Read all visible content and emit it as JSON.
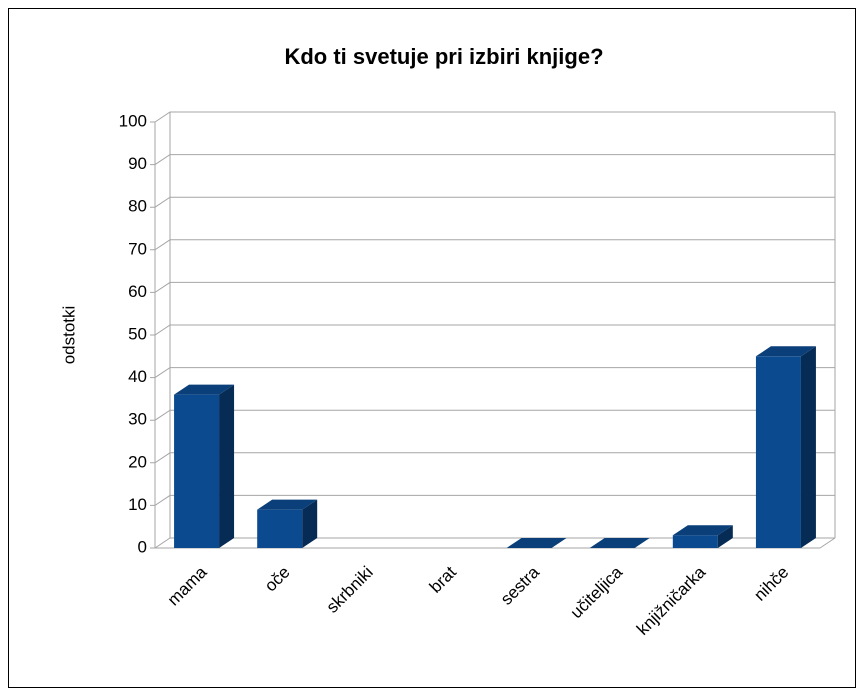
{
  "chart_data": {
    "type": "bar",
    "title": "Kdo ti svetuje pri izbiri knjige?",
    "y_label": "odstotki",
    "categories": [
      "mama",
      "oče",
      "skrbniki",
      "brat",
      "sestra",
      "učiteljica",
      "knjižničarka",
      "nihče"
    ],
    "values": [
      36,
      9,
      null,
      null,
      0,
      0,
      3,
      45
    ],
    "color": "#0b4a8e",
    "ylim": [
      0,
      100
    ],
    "yticks": [
      0,
      10,
      20,
      30,
      40,
      50,
      60,
      70,
      80,
      90,
      100
    ],
    "grid": true
  }
}
